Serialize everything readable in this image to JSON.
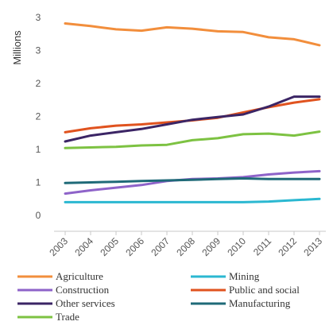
{
  "chart_data": {
    "type": "line",
    "title": "",
    "xlabel": "",
    "ylabel": "Millions",
    "categories": [
      "2003",
      "2004",
      "2005",
      "2006",
      "2007",
      "2008",
      "2009",
      "2010",
      "2011",
      "2012",
      "2013"
    ],
    "y_tick_labels": [
      "0",
      "1",
      "1",
      "2",
      "2",
      "3",
      "3"
    ],
    "ylim": [
      0,
      3
    ],
    "grid": false,
    "legend_position": "bottom",
    "series": [
      {
        "name": "Agriculture",
        "color": "#f28e3c",
        "values": [
          2.91,
          2.87,
          2.82,
          2.8,
          2.85,
          2.83,
          2.79,
          2.78,
          2.7,
          2.67,
          2.58
        ]
      },
      {
        "name": "Mining",
        "color": "#2bb8d1",
        "values": [
          0.2,
          0.2,
          0.2,
          0.2,
          0.2,
          0.2,
          0.2,
          0.2,
          0.21,
          0.23,
          0.25
        ]
      },
      {
        "name": "Construction",
        "color": "#8e63c9",
        "values": [
          0.33,
          0.38,
          0.42,
          0.46,
          0.52,
          0.55,
          0.56,
          0.58,
          0.62,
          0.65,
          0.67
        ]
      },
      {
        "name": "Public and social",
        "color": "#e0531f",
        "values": [
          1.26,
          1.32,
          1.36,
          1.38,
          1.41,
          1.44,
          1.48,
          1.56,
          1.64,
          1.71,
          1.76
        ]
      },
      {
        "name": "Other services",
        "color": "#3b2565",
        "values": [
          1.12,
          1.21,
          1.26,
          1.31,
          1.38,
          1.45,
          1.49,
          1.53,
          1.65,
          1.8,
          1.8
        ]
      },
      {
        "name": "Manufacturing",
        "color": "#1f6a78",
        "values": [
          0.49,
          0.5,
          0.51,
          0.52,
          0.53,
          0.54,
          0.55,
          0.56,
          0.55,
          0.55,
          0.55
        ]
      },
      {
        "name": "Trade",
        "color": "#7dc242",
        "values": [
          1.02,
          1.03,
          1.04,
          1.06,
          1.07,
          1.14,
          1.17,
          1.23,
          1.24,
          1.21,
          1.27
        ]
      }
    ]
  }
}
